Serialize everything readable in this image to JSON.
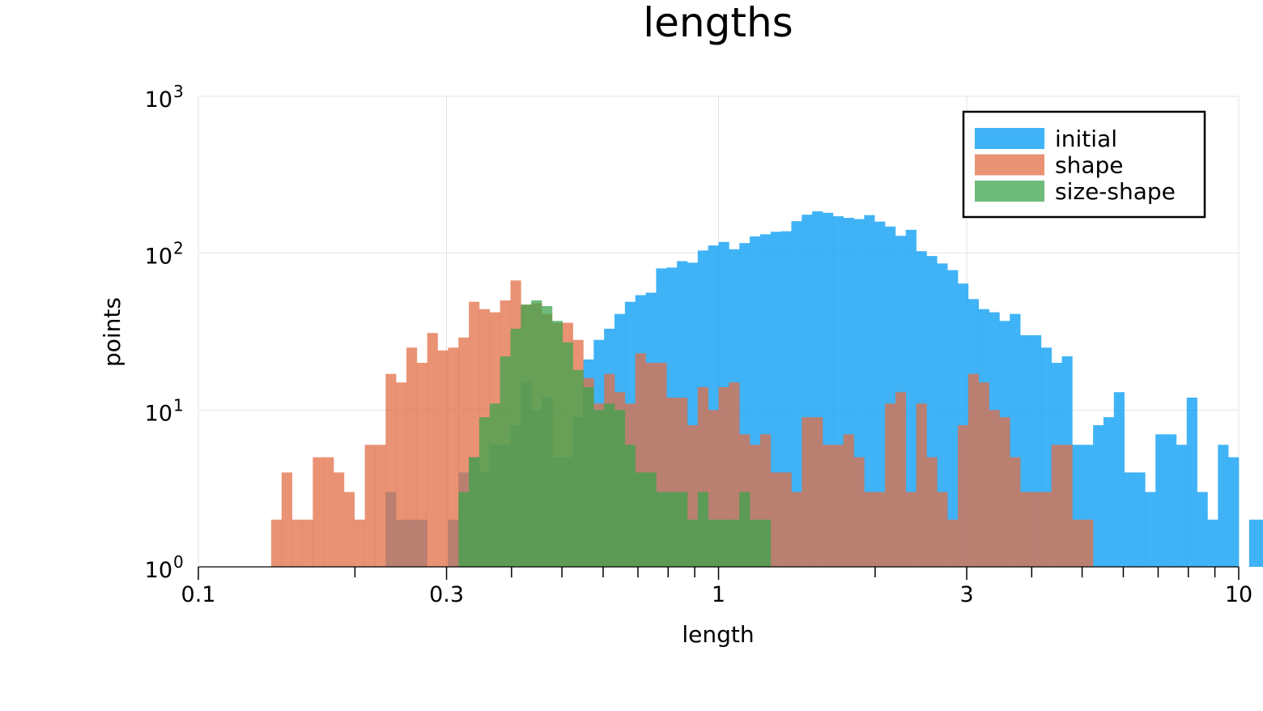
{
  "chart_data": {
    "type": "bar",
    "title": "lengths",
    "xlabel": "length",
    "ylabel": "points",
    "x_scale": "log10",
    "y_scale": "log10",
    "xlim": [
      0.1,
      10
    ],
    "ylim": [
      1,
      1000
    ],
    "x_ticks": [
      {
        "value": 0.1,
        "label": "0.1"
      },
      {
        "value": 0.3,
        "label": "0.3"
      },
      {
        "value": 1,
        "label": "1"
      },
      {
        "value": 3,
        "label": "3"
      },
      {
        "value": 10,
        "label": "10"
      }
    ],
    "y_ticks": [
      {
        "value": 1,
        "base": "10",
        "exp": "0"
      },
      {
        "value": 10,
        "base": "10",
        "exp": "1"
      },
      {
        "value": 100,
        "base": "10",
        "exp": "2"
      },
      {
        "value": 1000,
        "base": "10",
        "exp": "3"
      }
    ],
    "grid": true,
    "legend_position": "top-right",
    "bin_log10_width": 0.02,
    "series": [
      {
        "name": "initial",
        "color": "#1ea6f5",
        "opacity": 0.85,
        "bins_start": -0.66,
        "counts": [
          0,
          3,
          2,
          2,
          2,
          1,
          0,
          2,
          4,
          5,
          4,
          6,
          6,
          8,
          15,
          10,
          12,
          5,
          5,
          9,
          21,
          28,
          33,
          41,
          49,
          54,
          56,
          80,
          81,
          89,
          87,
          104,
          112,
          118,
          106,
          116,
          128,
          132,
          137,
          138,
          160,
          176,
          185,
          181,
          172,
          168,
          165,
          175,
          159,
          148,
          129,
          141,
          103,
          96,
          86,
          78,
          64,
          51,
          44,
          42,
          37,
          41,
          30,
          30,
          25,
          20,
          22,
          6,
          6,
          8,
          9,
          13,
          4,
          4,
          3,
          7,
          7,
          6,
          12,
          3,
          2,
          6,
          5,
          0,
          2,
          2,
          0,
          2,
          0,
          2,
          3,
          0,
          0,
          2
        ]
      },
      {
        "name": "shape",
        "color": "#e26f46",
        "opacity": 0.75,
        "bins_start": -0.86,
        "counts": [
          2,
          4,
          2,
          2,
          5,
          5,
          4,
          3,
          2,
          6,
          6,
          17,
          15,
          25,
          20,
          31,
          24,
          25,
          29,
          49,
          44,
          42,
          50,
          67,
          47,
          48,
          41,
          36,
          36,
          28,
          16,
          11,
          17,
          13,
          11,
          23,
          20,
          20,
          12,
          12,
          8,
          14,
          10,
          14,
          15,
          7,
          6,
          7,
          4,
          4,
          3,
          9,
          9,
          6,
          6,
          7,
          5,
          3,
          3,
          11,
          13,
          3,
          11,
          5,
          3,
          2,
          8,
          17,
          15,
          10,
          9,
          5,
          3,
          3,
          3,
          6,
          6,
          2,
          2
        ]
      },
      {
        "name": "size-shape",
        "color": "#3da44d",
        "opacity": 0.75,
        "bins_start": -0.5,
        "counts": [
          3,
          5,
          9,
          11,
          22,
          33,
          47,
          50,
          46,
          37,
          27,
          18,
          14,
          10,
          11,
          10,
          6,
          4,
          4,
          3,
          3,
          3,
          2,
          3,
          2,
          2,
          2,
          3,
          2,
          2
        ]
      }
    ]
  }
}
